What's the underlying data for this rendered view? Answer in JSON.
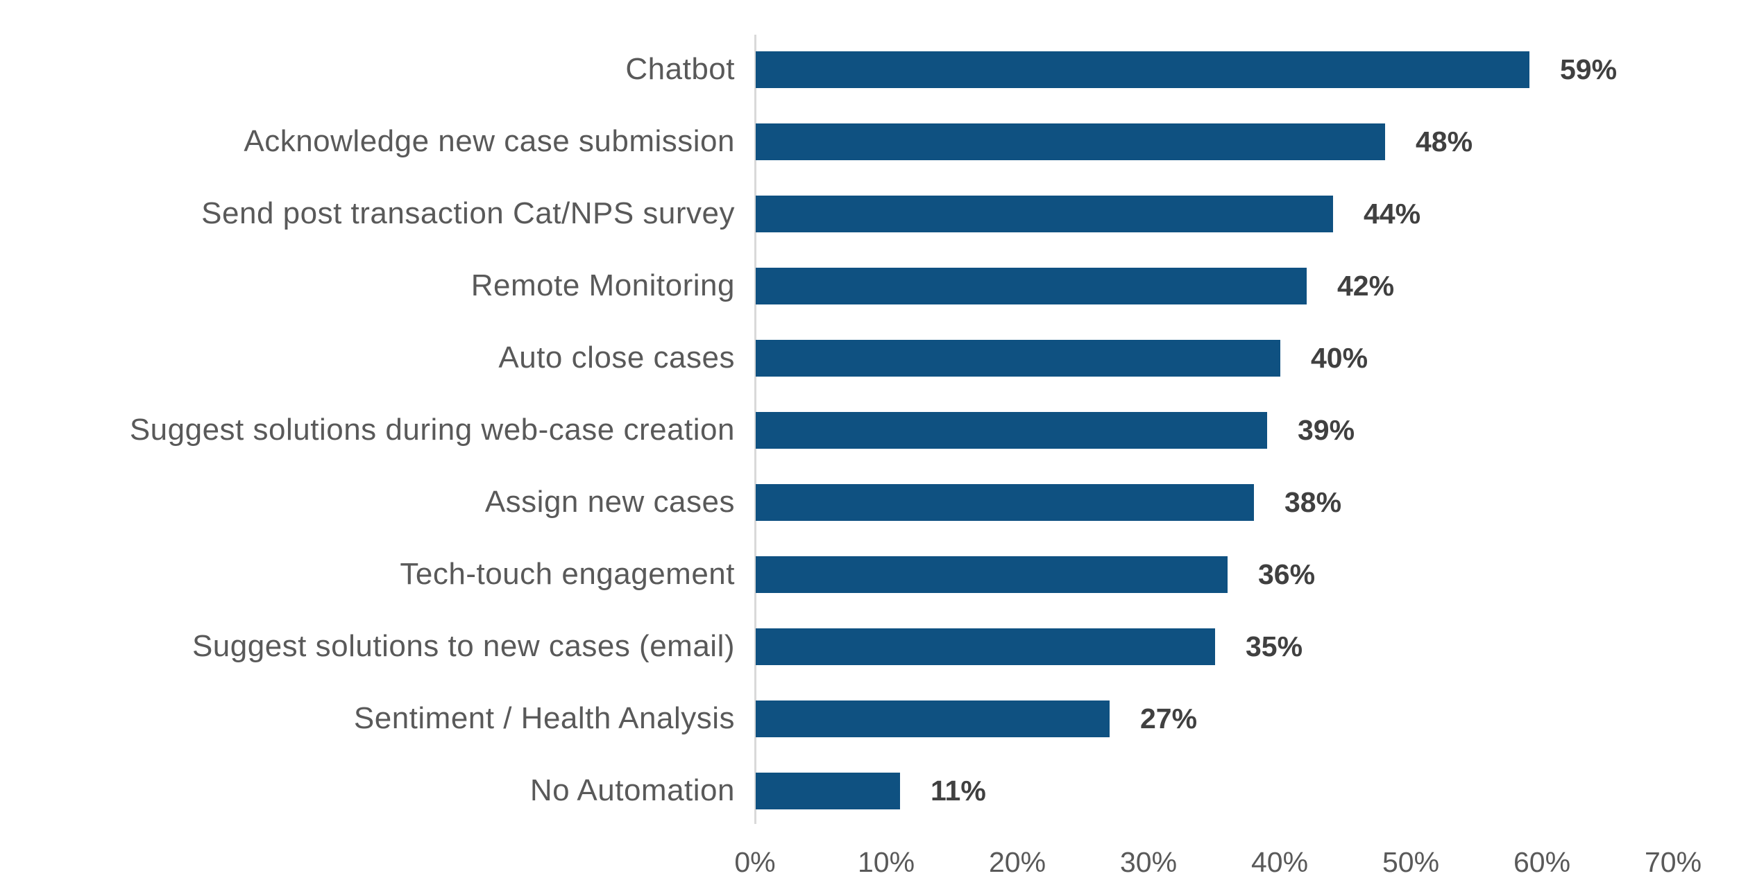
{
  "chart_data": {
    "type": "bar",
    "orientation": "horizontal",
    "title": "",
    "categories": [
      "Chatbot",
      "Acknowledge new case submission",
      "Send post transaction Cat/NPS survey",
      "Remote Monitoring",
      "Auto close cases",
      "Suggest solutions during web-case creation",
      "Assign new cases",
      "Tech-touch engagement",
      "Suggest solutions to new cases (email)",
      "Sentiment / Health Analysis",
      "No Automation"
    ],
    "values": [
      59,
      48,
      44,
      42,
      40,
      39,
      38,
      36,
      35,
      27,
      11
    ],
    "value_labels": [
      "59%",
      "48%",
      "44%",
      "42%",
      "40%",
      "39%",
      "38%",
      "36%",
      "35%",
      "27%",
      "11%"
    ],
    "xlim": [
      0,
      70
    ],
    "x_ticks": [
      "0%",
      "10%",
      "20%",
      "30%",
      "40%",
      "50%",
      "60%",
      "70%"
    ],
    "grid": false,
    "legend": null,
    "colors": {
      "bar": "#0F5181",
      "category_label": "#595959",
      "value_label": "#404040",
      "tick_label": "#595959",
      "axis_line": "#D9D9D9",
      "background": "#FFFFFF"
    }
  }
}
